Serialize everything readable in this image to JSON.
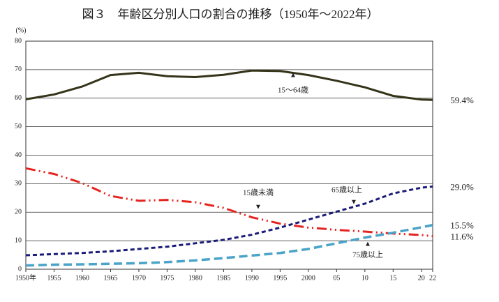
{
  "chart_data": {
    "type": "line",
    "title": "図３　年齢区分別人口の割合の推移（1950年〜2022年）",
    "y_label": "(%)",
    "x": [
      1950,
      1955,
      1960,
      1965,
      1970,
      1975,
      1980,
      1985,
      1990,
      1995,
      2000,
      2005,
      2010,
      2015,
      2020,
      2022
    ],
    "xlim": [
      1950,
      2022
    ],
    "xticks": [
      {
        "value": 1950,
        "label": "1950年"
      },
      1955,
      1960,
      1965,
      1970,
      1975,
      1980,
      1985,
      1990,
      1995,
      2000,
      {
        "value": 2005,
        "label": "05"
      },
      {
        "value": 2010,
        "label": "10"
      },
      {
        "value": 2015,
        "label": "15"
      },
      {
        "value": 2020,
        "label": "20"
      },
      {
        "value": 2022,
        "label": "22"
      }
    ],
    "ylim": [
      0,
      80
    ],
    "yticks": [
      0,
      10,
      20,
      30,
      40,
      50,
      60,
      70,
      80
    ],
    "grid": true,
    "series": [
      {
        "name": "15〜64歳",
        "color": "#34341a",
        "dash": "solid",
        "values": [
          59.6,
          61.3,
          64.1,
          68.1,
          68.9,
          67.7,
          67.4,
          68.2,
          69.7,
          69.5,
          68.1,
          66.1,
          63.8,
          60.8,
          59.5,
          59.4
        ],
        "value_labels": [
          null,
          null,
          null,
          null,
          null,
          null,
          null,
          null,
          null,
          null,
          null,
          null,
          null,
          null,
          null,
          "59.4%"
        ]
      },
      {
        "name": "15歳未満",
        "color": "#e52420",
        "dash": "dashdot",
        "values": [
          35.4,
          33.4,
          30.2,
          25.7,
          24.0,
          24.3,
          23.5,
          21.5,
          18.2,
          16.0,
          14.6,
          13.8,
          13.2,
          12.5,
          12.0,
          11.6
        ],
        "value_labels": [
          null,
          null,
          null,
          null,
          null,
          null,
          null,
          null,
          null,
          null,
          null,
          null,
          null,
          null,
          null,
          "11.6%"
        ]
      },
      {
        "name": "65歳以上",
        "color": "#1b1b78",
        "dash": "dashed",
        "values": [
          4.9,
          5.3,
          5.7,
          6.3,
          7.1,
          7.9,
          9.1,
          10.3,
          12.1,
          14.6,
          17.4,
          20.2,
          23.0,
          26.6,
          28.6,
          29.0
        ],
        "value_labels": [
          null,
          null,
          null,
          null,
          null,
          null,
          null,
          null,
          null,
          null,
          null,
          null,
          null,
          null,
          null,
          "29.0%"
        ]
      },
      {
        "name": "75歳以上",
        "color": "#4aa3c8",
        "dash": "longdash",
        "values": [
          1.3,
          1.6,
          1.7,
          1.9,
          2.1,
          2.5,
          3.1,
          3.9,
          4.8,
          5.7,
          7.1,
          9.1,
          11.1,
          12.8,
          14.7,
          15.5
        ],
        "value_labels": [
          null,
          null,
          null,
          null,
          null,
          null,
          null,
          null,
          null,
          null,
          null,
          null,
          null,
          null,
          null,
          "15.5%"
        ]
      }
    ]
  }
}
